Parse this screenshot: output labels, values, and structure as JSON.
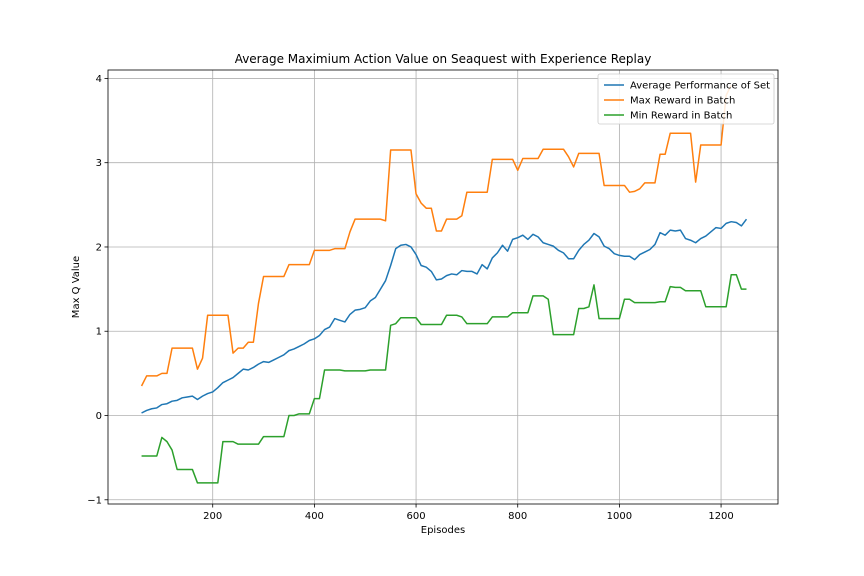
{
  "chart_data": {
    "type": "line",
    "title": "Average Maximium Action Value on Seaquest with Experience Replay",
    "xlabel": "Episodes",
    "ylabel": "Max Q Value",
    "xlim": [
      -6,
      1312
    ],
    "ylim": [
      -1.05,
      4.1
    ],
    "xticks": [
      200,
      400,
      600,
      800,
      1000,
      1200
    ],
    "yticks": [
      -1,
      0,
      1,
      2,
      3,
      4
    ],
    "ytick_labels": [
      "−1",
      "0",
      "1",
      "2",
      "3",
      "4"
    ],
    "grid": true,
    "legend_position": "top-right",
    "colors": {
      "s0": "#1f77b4",
      "s1": "#ff7f0e",
      "s2": "#2ca02c"
    },
    "series": [
      {
        "name": "Average Performance of Set",
        "x": [
          60,
          70,
          80,
          90,
          100,
          110,
          120,
          130,
          140,
          150,
          160,
          170,
          180,
          190,
          200,
          210,
          220,
          230,
          240,
          250,
          260,
          270,
          280,
          290,
          300,
          310,
          320,
          330,
          340,
          350,
          360,
          370,
          380,
          390,
          400,
          410,
          420,
          430,
          440,
          450,
          460,
          470,
          480,
          490,
          500,
          510,
          520,
          530,
          540,
          550,
          560,
          570,
          580,
          590,
          600,
          610,
          620,
          630,
          640,
          650,
          660,
          670,
          680,
          690,
          700,
          710,
          720,
          730,
          740,
          750,
          760,
          770,
          780,
          790,
          800,
          810,
          820,
          830,
          840,
          850,
          860,
          870,
          880,
          890,
          900,
          910,
          920,
          930,
          940,
          950,
          960,
          970,
          980,
          990,
          1000,
          1010,
          1020,
          1030,
          1040,
          1050,
          1060,
          1070,
          1080,
          1090,
          1100,
          1110,
          1120,
          1130,
          1140,
          1150,
          1160,
          1170,
          1180,
          1190,
          1200,
          1210,
          1220,
          1230,
          1240,
          1250
        ],
        "y": [
          0.03,
          0.06,
          0.08,
          0.09,
          0.13,
          0.14,
          0.17,
          0.18,
          0.21,
          0.22,
          0.23,
          0.19,
          0.23,
          0.26,
          0.28,
          0.33,
          0.39,
          0.42,
          0.45,
          0.5,
          0.55,
          0.54,
          0.57,
          0.61,
          0.64,
          0.63,
          0.66,
          0.69,
          0.72,
          0.77,
          0.79,
          0.82,
          0.85,
          0.89,
          0.91,
          0.95,
          1.02,
          1.05,
          1.15,
          1.13,
          1.11,
          1.2,
          1.25,
          1.26,
          1.28,
          1.36,
          1.4,
          1.5,
          1.6,
          1.78,
          1.98,
          2.02,
          2.03,
          2.0,
          1.91,
          1.78,
          1.76,
          1.71,
          1.61,
          1.62,
          1.66,
          1.68,
          1.67,
          1.72,
          1.71,
          1.71,
          1.68,
          1.79,
          1.74,
          1.87,
          1.93,
          2.02,
          1.95,
          2.09,
          2.11,
          2.14,
          2.09,
          2.15,
          2.12,
          2.05,
          2.03,
          2.01,
          1.96,
          1.93,
          1.86,
          1.86,
          1.96,
          2.03,
          2.08,
          2.16,
          2.12,
          2.01,
          1.98,
          1.92,
          1.9,
          1.89,
          1.89,
          1.85,
          1.91,
          1.94,
          1.97,
          2.03,
          2.17,
          2.14,
          2.2,
          2.19,
          2.2,
          2.1,
          2.08,
          2.05,
          2.1,
          2.13,
          2.18,
          2.23,
          2.22,
          2.28,
          2.3,
          2.29,
          2.25,
          2.33
        ]
      },
      {
        "name": "Max Reward in Batch",
        "x": [
          60,
          70,
          80,
          90,
          100,
          110,
          120,
          130,
          140,
          150,
          160,
          170,
          180,
          190,
          200,
          210,
          220,
          230,
          240,
          250,
          260,
          270,
          280,
          290,
          300,
          310,
          320,
          330,
          340,
          350,
          360,
          370,
          380,
          390,
          400,
          410,
          420,
          430,
          440,
          450,
          460,
          470,
          480,
          490,
          500,
          510,
          520,
          530,
          540,
          550,
          560,
          570,
          580,
          590,
          600,
          610,
          620,
          630,
          640,
          650,
          660,
          670,
          680,
          690,
          700,
          710,
          720,
          730,
          740,
          750,
          760,
          770,
          780,
          790,
          800,
          810,
          820,
          830,
          840,
          850,
          860,
          870,
          880,
          890,
          900,
          910,
          920,
          930,
          940,
          950,
          960,
          970,
          980,
          990,
          1000,
          1010,
          1020,
          1030,
          1040,
          1050,
          1060,
          1070,
          1080,
          1090,
          1100,
          1110,
          1120,
          1130,
          1140,
          1150,
          1160,
          1170,
          1180,
          1190,
          1200,
          1210,
          1220
        ],
        "y": [
          0.35,
          0.47,
          0.47,
          0.47,
          0.5,
          0.5,
          0.8,
          0.8,
          0.8,
          0.8,
          0.8,
          0.55,
          0.68,
          1.19,
          1.19,
          1.19,
          1.19,
          1.19,
          0.74,
          0.8,
          0.8,
          0.87,
          0.87,
          1.33,
          1.65,
          1.65,
          1.65,
          1.65,
          1.65,
          1.79,
          1.79,
          1.79,
          1.79,
          1.79,
          1.96,
          1.96,
          1.96,
          1.96,
          1.98,
          1.98,
          1.98,
          2.18,
          2.33,
          2.33,
          2.33,
          2.33,
          2.33,
          2.33,
          2.31,
          3.15,
          3.15,
          3.15,
          3.15,
          3.15,
          2.63,
          2.52,
          2.46,
          2.46,
          2.19,
          2.19,
          2.33,
          2.33,
          2.33,
          2.37,
          2.65,
          2.65,
          2.65,
          2.65,
          2.65,
          3.04,
          3.04,
          3.04,
          3.04,
          3.04,
          2.91,
          3.05,
          3.05,
          3.05,
          3.05,
          3.16,
          3.16,
          3.16,
          3.16,
          3.16,
          3.07,
          2.95,
          3.11,
          3.11,
          3.11,
          3.11,
          3.11,
          2.73,
          2.73,
          2.73,
          2.73,
          2.73,
          2.65,
          2.66,
          2.69,
          2.76,
          2.76,
          2.76,
          3.1,
          3.1,
          3.35,
          3.35,
          3.35,
          3.35,
          3.35,
          2.77,
          3.21,
          3.21,
          3.21,
          3.21,
          3.21,
          3.8,
          3.92
        ]
      },
      {
        "name": "Min Reward in Batch",
        "x": [
          60,
          70,
          80,
          90,
          100,
          110,
          120,
          130,
          140,
          150,
          160,
          170,
          180,
          190,
          200,
          210,
          220,
          230,
          240,
          250,
          260,
          270,
          280,
          290,
          300,
          310,
          320,
          330,
          340,
          350,
          360,
          370,
          380,
          390,
          400,
          410,
          420,
          430,
          440,
          450,
          460,
          470,
          480,
          490,
          500,
          510,
          520,
          530,
          540,
          550,
          560,
          570,
          580,
          590,
          600,
          610,
          620,
          630,
          640,
          650,
          660,
          670,
          680,
          690,
          700,
          710,
          720,
          730,
          740,
          750,
          760,
          770,
          780,
          790,
          800,
          810,
          820,
          830,
          840,
          850,
          860,
          870,
          880,
          890,
          900,
          910,
          920,
          930,
          940,
          950,
          960,
          970,
          980,
          990,
          1000,
          1010,
          1020,
          1030,
          1040,
          1050,
          1060,
          1070,
          1080,
          1090,
          1100,
          1110,
          1120,
          1130,
          1140,
          1150,
          1160,
          1170,
          1180,
          1190,
          1200,
          1210,
          1220,
          1230,
          1240,
          1250
        ],
        "y": [
          -0.48,
          -0.48,
          -0.48,
          -0.48,
          -0.26,
          -0.31,
          -0.41,
          -0.64,
          -0.64,
          -0.64,
          -0.64,
          -0.8,
          -0.8,
          -0.8,
          -0.8,
          -0.8,
          -0.31,
          -0.31,
          -0.31,
          -0.34,
          -0.34,
          -0.34,
          -0.34,
          -0.34,
          -0.25,
          -0.25,
          -0.25,
          -0.25,
          -0.25,
          0.0,
          0.0,
          0.02,
          0.02,
          0.02,
          0.2,
          0.2,
          0.54,
          0.54,
          0.54,
          0.54,
          0.53,
          0.53,
          0.53,
          0.53,
          0.53,
          0.54,
          0.54,
          0.54,
          0.54,
          1.07,
          1.09,
          1.16,
          1.16,
          1.16,
          1.16,
          1.08,
          1.08,
          1.08,
          1.08,
          1.08,
          1.19,
          1.19,
          1.19,
          1.17,
          1.09,
          1.09,
          1.09,
          1.09,
          1.09,
          1.17,
          1.17,
          1.17,
          1.17,
          1.22,
          1.22,
          1.22,
          1.22,
          1.42,
          1.42,
          1.42,
          1.38,
          0.96,
          0.96,
          0.96,
          0.96,
          0.96,
          1.27,
          1.27,
          1.29,
          1.55,
          1.15,
          1.15,
          1.15,
          1.15,
          1.15,
          1.38,
          1.38,
          1.34,
          1.34,
          1.34,
          1.34,
          1.34,
          1.35,
          1.35,
          1.53,
          1.52,
          1.52,
          1.48,
          1.48,
          1.48,
          1.48,
          1.29,
          1.29,
          1.29,
          1.29,
          1.29,
          1.67,
          1.67,
          1.5,
          1.5
        ]
      }
    ]
  }
}
